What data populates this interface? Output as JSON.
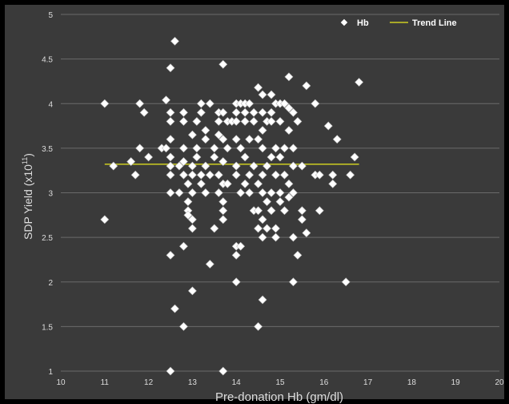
{
  "chart_data": {
    "type": "scatter",
    "title": "",
    "xlabel": "Pre-donation Hb (gm/dl)",
    "ylabel_main": "SDP Yield (x10",
    "ylabel_sup": "11",
    "ylabel_tail": ")",
    "xlim": [
      10,
      20
    ],
    "ylim": [
      1,
      5
    ],
    "x_ticks": [
      "10",
      "11",
      "12",
      "13",
      "14",
      "15",
      "16",
      "17",
      "18",
      "19",
      "20"
    ],
    "y_ticks": [
      "1",
      "1.5",
      "2",
      "2.5",
      "3",
      "3.5",
      "4",
      "4.5",
      "5"
    ],
    "grid": "horizontal",
    "legend_position": "top-right",
    "series": [
      {
        "name": "Hb",
        "marker": "diamond",
        "color": "#ffffff",
        "points": [
          [
            11.0,
            4.0
          ],
          [
            11.0,
            2.7
          ],
          [
            11.2,
            3.3
          ],
          [
            11.6,
            3.35
          ],
          [
            11.7,
            3.2
          ],
          [
            11.8,
            4.0
          ],
          [
            11.8,
            3.5
          ],
          [
            11.9,
            3.9
          ],
          [
            12.0,
            3.4
          ],
          [
            12.3,
            3.5
          ],
          [
            12.4,
            3.5
          ],
          [
            12.4,
            4.04
          ],
          [
            12.5,
            4.4
          ],
          [
            12.5,
            3.9
          ],
          [
            12.5,
            3.8
          ],
          [
            12.5,
            3.6
          ],
          [
            12.5,
            3.4
          ],
          [
            12.5,
            3.3
          ],
          [
            12.5,
            3.2
          ],
          [
            12.5,
            3.0
          ],
          [
            12.5,
            2.3
          ],
          [
            12.5,
            1.0
          ],
          [
            12.6,
            4.7
          ],
          [
            12.6,
            1.7
          ],
          [
            12.7,
            3.0
          ],
          [
            12.7,
            3.3
          ],
          [
            12.8,
            3.9
          ],
          [
            12.8,
            3.8
          ],
          [
            12.8,
            3.5
          ],
          [
            12.8,
            3.35
          ],
          [
            12.8,
            3.2
          ],
          [
            12.8,
            2.4
          ],
          [
            12.8,
            1.5
          ],
          [
            12.9,
            2.9
          ],
          [
            12.9,
            2.8
          ],
          [
            12.9,
            2.75
          ],
          [
            12.9,
            3.1
          ],
          [
            13.0,
            3.2
          ],
          [
            13.0,
            3.0
          ],
          [
            13.0,
            2.7
          ],
          [
            13.0,
            3.65
          ],
          [
            13.0,
            3.3
          ],
          [
            13.0,
            2.6
          ],
          [
            13.0,
            1.9
          ],
          [
            13.1,
            3.8
          ],
          [
            13.1,
            3.5
          ],
          [
            13.1,
            3.4
          ],
          [
            13.2,
            3.9
          ],
          [
            13.2,
            4.0
          ],
          [
            13.2,
            3.1
          ],
          [
            13.2,
            3.2
          ],
          [
            13.3,
            3.7
          ],
          [
            13.3,
            3.6
          ],
          [
            13.3,
            3.3
          ],
          [
            13.3,
            3.0
          ],
          [
            13.4,
            3.2
          ],
          [
            13.4,
            4.0
          ],
          [
            13.4,
            2.2
          ],
          [
            13.5,
            3.5
          ],
          [
            13.5,
            2.6
          ],
          [
            13.5,
            3.4
          ],
          [
            13.6,
            3.9
          ],
          [
            13.6,
            3.8
          ],
          [
            13.6,
            3.65
          ],
          [
            13.6,
            3.2
          ],
          [
            13.6,
            3.0
          ],
          [
            13.7,
            4.44
          ],
          [
            13.7,
            3.9
          ],
          [
            13.7,
            3.6
          ],
          [
            13.7,
            3.1
          ],
          [
            13.7,
            2.9
          ],
          [
            13.7,
            2.8
          ],
          [
            13.7,
            2.7
          ],
          [
            13.7,
            1.0
          ],
          [
            13.7,
            3.35
          ],
          [
            13.8,
            3.8
          ],
          [
            13.8,
            3.5
          ],
          [
            13.8,
            3.1
          ],
          [
            13.9,
            3.8
          ],
          [
            14.0,
            4.0
          ],
          [
            14.0,
            3.9
          ],
          [
            14.0,
            3.8
          ],
          [
            14.0,
            3.6
          ],
          [
            14.0,
            3.3
          ],
          [
            14.0,
            3.2
          ],
          [
            14.0,
            2.4
          ],
          [
            14.0,
            2.3
          ],
          [
            14.0,
            2.0
          ],
          [
            14.1,
            4.0
          ],
          [
            14.1,
            3.5
          ],
          [
            14.1,
            3.0
          ],
          [
            14.1,
            2.4
          ],
          [
            14.2,
            4.0
          ],
          [
            14.2,
            3.9
          ],
          [
            14.2,
            3.8
          ],
          [
            14.2,
            3.1
          ],
          [
            14.2,
            3.4
          ],
          [
            14.3,
            4.0
          ],
          [
            14.3,
            3.6
          ],
          [
            14.3,
            3.2
          ],
          [
            14.3,
            3.0
          ],
          [
            14.4,
            3.9
          ],
          [
            14.4,
            3.8
          ],
          [
            14.4,
            3.3
          ],
          [
            14.4,
            2.8
          ],
          [
            14.5,
            3.6
          ],
          [
            14.5,
            3.1
          ],
          [
            14.5,
            2.8
          ],
          [
            14.5,
            2.6
          ],
          [
            14.5,
            1.5
          ],
          [
            14.5,
            4.18
          ],
          [
            14.6,
            4.1
          ],
          [
            14.6,
            3.9
          ],
          [
            14.6,
            3.7
          ],
          [
            14.6,
            3.5
          ],
          [
            14.6,
            3.2
          ],
          [
            14.6,
            3.0
          ],
          [
            14.6,
            2.7
          ],
          [
            14.6,
            2.5
          ],
          [
            14.6,
            1.8
          ],
          [
            14.7,
            3.8
          ],
          [
            14.7,
            3.3
          ],
          [
            14.7,
            2.9
          ],
          [
            14.7,
            2.6
          ],
          [
            14.8,
            4.1
          ],
          [
            14.8,
            3.9
          ],
          [
            14.8,
            3.8
          ],
          [
            14.8,
            3.4
          ],
          [
            14.8,
            3.0
          ],
          [
            14.8,
            2.8
          ],
          [
            14.9,
            4.0
          ],
          [
            14.9,
            3.5
          ],
          [
            14.9,
            3.2
          ],
          [
            14.9,
            2.6
          ],
          [
            14.9,
            2.5
          ],
          [
            15.0,
            4.0
          ],
          [
            15.0,
            3.8
          ],
          [
            15.0,
            3.4
          ],
          [
            15.0,
            3.0
          ],
          [
            15.0,
            2.9
          ],
          [
            15.1,
            4.0
          ],
          [
            15.1,
            3.5
          ],
          [
            15.1,
            3.2
          ],
          [
            15.1,
            2.8
          ],
          [
            15.2,
            3.95
          ],
          [
            15.2,
            3.7
          ],
          [
            15.2,
            3.1
          ],
          [
            15.2,
            2.95
          ],
          [
            15.2,
            4.3
          ],
          [
            15.3,
            3.9
          ],
          [
            15.3,
            3.5
          ],
          [
            15.3,
            3.3
          ],
          [
            15.3,
            3.0
          ],
          [
            15.3,
            2.5
          ],
          [
            15.3,
            2.0
          ],
          [
            15.4,
            3.8
          ],
          [
            15.4,
            2.3
          ],
          [
            15.5,
            3.3
          ],
          [
            15.5,
            2.8
          ],
          [
            15.5,
            2.7
          ],
          [
            15.6,
            4.2
          ],
          [
            15.6,
            2.55
          ],
          [
            15.8,
            4.0
          ],
          [
            15.8,
            3.2
          ],
          [
            15.9,
            3.2
          ],
          [
            15.9,
            2.8
          ],
          [
            16.1,
            3.75
          ],
          [
            16.2,
            3.2
          ],
          [
            16.2,
            3.1
          ],
          [
            16.3,
            3.6
          ],
          [
            16.5,
            2.0
          ],
          [
            16.6,
            3.2
          ],
          [
            16.7,
            3.4
          ],
          [
            16.8,
            4.24
          ]
        ]
      },
      {
        "name": "Trend Line",
        "type": "line",
        "color": "#cccc22",
        "points": [
          [
            11.0,
            3.32
          ],
          [
            16.8,
            3.32
          ]
        ]
      }
    ]
  }
}
